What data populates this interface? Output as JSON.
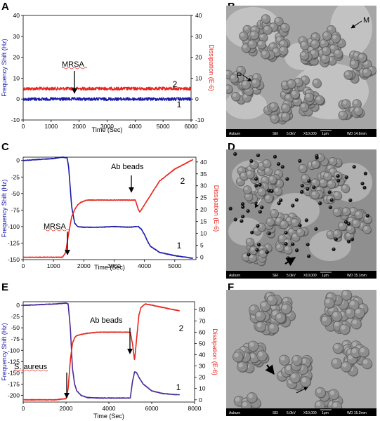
{
  "panels": [
    {
      "letter": "A"
    },
    {
      "letter": "B"
    },
    {
      "letter": "C"
    },
    {
      "letter": "D"
    },
    {
      "letter": "E"
    },
    {
      "letter": "F"
    }
  ],
  "colors": {
    "frequency": "#1a1aa8",
    "dissipation": "#e8241c",
    "annotation": "#000000",
    "sem_bar": "#000000",
    "sem_text": "#ffffff"
  },
  "sem": [
    {
      "caption": [
        "Auburn",
        "SEI",
        "5.0kV",
        "X10,000",
        "1μm",
        "WD 14.6mm"
      ],
      "labels": [
        "M",
        "P"
      ]
    },
    {
      "caption": [
        "Auburn",
        "SEI",
        "5.0kV",
        "X10,000",
        "1μm",
        "WD 15.1mm"
      ],
      "labels": []
    },
    {
      "caption": [
        "Auburn",
        "SEI",
        "5.0kV",
        "X10,000",
        "1μm",
        "WD 15.2mm"
      ],
      "labels": []
    }
  ],
  "chart_data": [
    {
      "type": "line",
      "xlabel": "Time (Sec)",
      "ylabel_left": "Frequency Shift (Hz)",
      "ylabel_right": "Dissipation (E-6)",
      "xlim": [
        0,
        6000
      ],
      "xticks": [
        0,
        1000,
        2000,
        3000,
        4000,
        5000,
        6000
      ],
      "ylim_left": [
        -10,
        40
      ],
      "yticks_left": [
        -10,
        0,
        10,
        20,
        30,
        40
      ],
      "ytick_labels_left": [
        "-10",
        "0",
        "10",
        "20",
        "30",
        "40"
      ],
      "ylim_right": [
        -10,
        40
      ],
      "yticks_right": [
        -10,
        0,
        10,
        20,
        30,
        40
      ],
      "ytick_labels_right": [
        "-10",
        "0",
        "10",
        "20",
        "30",
        "40"
      ],
      "series": [
        {
          "name": "2",
          "axis": "right",
          "color": "#e8241c",
          "x": [
            0,
            6000
          ],
          "y": [
            5,
            5
          ]
        },
        {
          "name": "1",
          "axis": "left",
          "color": "#1a1aa8",
          "x": [
            0,
            6000
          ],
          "y": [
            0,
            0
          ]
        }
      ],
      "annotations": [
        {
          "text": "MRSA",
          "x": 1800,
          "y": 3
        }
      ]
    },
    {
      "type": "line",
      "xlabel": "Time (Sec)",
      "ylabel_left": "Frequency Shift (Hz)",
      "ylabel_right": "Dissipation (E-6)",
      "xlim": [
        0,
        5700
      ],
      "xticks": [
        0,
        1000,
        2000,
        3000,
        4000,
        5000
      ],
      "ylim_left": [
        -150,
        5
      ],
      "yticks_left": [
        -150,
        -125,
        -100,
        -75,
        -50,
        -25,
        0
      ],
      "ytick_labels_left": [
        "-150",
        "-125",
        "-100",
        "-75",
        "-50",
        "-25",
        "0"
      ],
      "ylim_right": [
        -1,
        42
      ],
      "yticks_right": [
        0,
        5,
        10,
        15,
        20,
        25,
        30,
        35,
        40
      ],
      "ytick_labels_right": [
        "0",
        "5",
        "10",
        "15",
        "20",
        "25",
        "30",
        "35",
        "40"
      ],
      "series": [
        {
          "name": "1",
          "axis": "left",
          "color": "#1a1aa8",
          "x": [
            0,
            700,
            1000,
            1300,
            1450,
            1500,
            1550,
            1600,
            1700,
            1800,
            2000,
            2200,
            2500,
            3000,
            3500,
            3700,
            3800,
            3900,
            4000,
            4100,
            4200,
            4500,
            5000,
            5600
          ],
          "y": [
            0,
            2,
            3,
            5,
            4,
            -10,
            -40,
            -70,
            -95,
            -100,
            -101,
            -101,
            -101,
            -100,
            -101,
            -100,
            -100,
            -104,
            -112,
            -122,
            -130,
            -139,
            -144,
            -148
          ]
        },
        {
          "name": "2",
          "axis": "right",
          "color": "#e8241c",
          "x": [
            0,
            700,
            1000,
            1300,
            1400,
            1500,
            1600,
            1700,
            1800,
            1900,
            2100,
            2500,
            3000,
            3500,
            3700,
            3800,
            3850,
            3900,
            4000,
            4200,
            4300,
            4500,
            5000,
            5600
          ],
          "y": [
            0,
            0,
            0,
            0,
            2,
            10,
            17,
            20,
            22,
            23,
            24,
            24,
            24,
            24,
            24,
            20,
            19,
            20,
            22,
            26,
            28,
            32,
            37,
            41
          ]
        }
      ],
      "annotations": [
        {
          "text": "MRSA",
          "x": 1350,
          "y": -140
        },
        {
          "text": "Ab beads",
          "x": 3550,
          "y": 27
        }
      ]
    },
    {
      "type": "line",
      "xlabel": "Time (Sec)",
      "ylabel_left": "Frequency Shift (Hz)",
      "ylabel_right": "Dissipation (E-6)",
      "xlim": [
        0,
        8000
      ],
      "xticks": [
        0,
        2000,
        4000,
        6000,
        8000
      ],
      "ylim_left": [
        -215,
        8
      ],
      "yticks_left": [
        -200,
        -175,
        -150,
        -125,
        -100,
        -75,
        -50,
        -25,
        0
      ],
      "ytick_labels_left": [
        "-200",
        "-175",
        "-150",
        "-125",
        "-100",
        "-75",
        "-50",
        "-25",
        "0"
      ],
      "ylim_right": [
        -2,
        87
      ],
      "yticks_right": [
        0,
        10,
        20,
        30,
        40,
        50,
        60,
        70,
        80
      ],
      "ytick_labels_right": [
        "0",
        "10",
        "20",
        "30",
        "40",
        "50",
        "60",
        "70",
        "80"
      ],
      "series": [
        {
          "name": "1",
          "axis": "left",
          "color": "#4a2a9a",
          "x": [
            0,
            1000,
            1500,
            2000,
            2100,
            2200,
            2300,
            2400,
            2500,
            2700,
            3000,
            3500,
            4000,
            4500,
            5000,
            5100,
            5200,
            5300,
            5400,
            5600,
            6000,
            6500,
            7000,
            7300
          ],
          "y": [
            0,
            2,
            3,
            5,
            3,
            -50,
            -140,
            -175,
            -190,
            -200,
            -205,
            -206,
            -206,
            -206,
            -206,
            -170,
            -148,
            -150,
            -160,
            -175,
            -190,
            -196,
            -198,
            -199
          ]
        },
        {
          "name": "2",
          "axis": "right",
          "color": "#e8241c",
          "x": [
            0,
            1000,
            1500,
            2000,
            2100,
            2200,
            2300,
            2400,
            2500,
            2700,
            3000,
            3500,
            4000,
            4500,
            5000,
            5100,
            5200,
            5300,
            5400,
            5500,
            5700,
            6000,
            6500,
            7000,
            7300
          ],
          "y": [
            0,
            0,
            0,
            1,
            10,
            35,
            50,
            55,
            57,
            58,
            59,
            60,
            60,
            60,
            60,
            50,
            35,
            55,
            75,
            82,
            85,
            84,
            82,
            80,
            79
          ]
        }
      ],
      "annotations": [
        {
          "text": "S. aureus",
          "x": 2050,
          "y": -190
        },
        {
          "text": "Ab beads",
          "x": 5050,
          "y": 62
        }
      ]
    }
  ]
}
